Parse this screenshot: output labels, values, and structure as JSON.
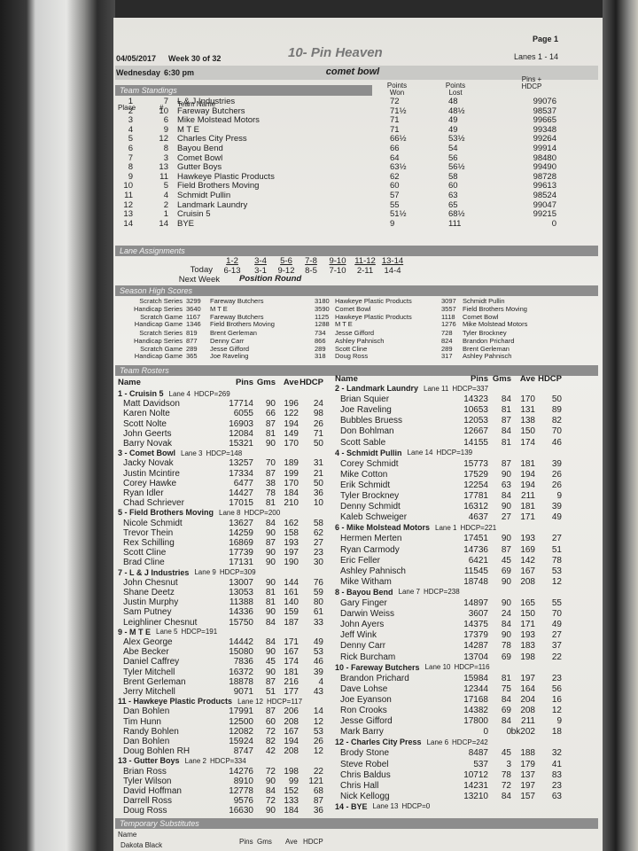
{
  "header": {
    "page": "Page 1",
    "date": "04/05/2017",
    "week": "Week 30 of 32",
    "title": "10- Pin Heaven",
    "lanes": "Lanes 1 - 14",
    "day": "Wednesday",
    "time": "6:30 pm",
    "center": "comet bowl"
  },
  "standings": {
    "title": "Team Standings",
    "columns": [
      "Place",
      "#",
      "Team Name",
      "Points Won",
      "Points Lost",
      "Pins + HDCP"
    ],
    "rows": [
      [
        1,
        7,
        "L & J Industries",
        "72",
        "48",
        99076
      ],
      [
        2,
        10,
        "Fareway Butchers",
        "71½",
        "48½",
        98537
      ],
      [
        3,
        6,
        "Mike Molstead Motors",
        "71",
        "49",
        99665
      ],
      [
        4,
        9,
        "M T E",
        "71",
        "49",
        99348
      ],
      [
        5,
        12,
        "Charles City Press",
        "66½",
        "53½",
        99264
      ],
      [
        6,
        8,
        "Bayou Bend",
        "66",
        "54",
        99914
      ],
      [
        7,
        3,
        "Comet Bowl",
        "64",
        "56",
        98480
      ],
      [
        8,
        13,
        "Gutter Boys",
        "63½",
        "56½",
        99490
      ],
      [
        9,
        11,
        "Hawkeye Plastic Products",
        "62",
        "58",
        98728
      ],
      [
        10,
        5,
        "Field Brothers Moving",
        "60",
        "60",
        99613
      ],
      [
        11,
        4,
        "Schmidt Pullin",
        "57",
        "63",
        98524
      ],
      [
        12,
        2,
        "Landmark Laundry",
        "55",
        "65",
        99047
      ],
      [
        13,
        1,
        "Cruisin 5",
        "51½",
        "68½",
        99215
      ],
      [
        14,
        14,
        "BYE",
        "9",
        "111",
        0
      ]
    ]
  },
  "lanes": {
    "title": "Lane Assignments",
    "pairs": [
      "1-2",
      "3-4",
      "5-6",
      "7-8",
      "9-10",
      "11-12",
      "13-14"
    ],
    "today_label": "Today",
    "today": [
      "6-13",
      "3-1",
      "9-12",
      "8-5",
      "7-10",
      "2-11",
      "14-4"
    ],
    "next_label": "Next Week",
    "next": "Position Round"
  },
  "high_scores": {
    "title": "Season High Scores",
    "team": [
      {
        "label": "Scratch Series",
        "entries": [
          [
            3299,
            "Fareway Butchers"
          ],
          [
            3180,
            "Hawkeye Plastic Products"
          ],
          [
            3097,
            "Schmidt Pullin"
          ]
        ]
      },
      {
        "label": "Handicap Series",
        "entries": [
          [
            3640,
            "M T E"
          ],
          [
            3590,
            "Comet Bowl"
          ],
          [
            3557,
            "Field Brothers Moving"
          ]
        ]
      },
      {
        "label": "Scratch Game",
        "entries": [
          [
            1167,
            "Fareway Butchers"
          ],
          [
            1125,
            "Hawkeye Plastic Products"
          ],
          [
            1118,
            "Comet Bowl"
          ]
        ]
      },
      {
        "label": "Handicap Game",
        "entries": [
          [
            1346,
            "Field Brothers Moving"
          ],
          [
            1288,
            "M T E"
          ],
          [
            1276,
            "Mike Molstead Motors"
          ]
        ]
      }
    ],
    "individual": [
      {
        "label": "Scratch Series",
        "entries": [
          [
            819,
            "Brent Gerleman"
          ],
          [
            734,
            "Jesse Gifford"
          ],
          [
            728,
            "Tyler Brockney"
          ]
        ]
      },
      {
        "label": "Handicap Series",
        "entries": [
          [
            877,
            "Denny Carr"
          ],
          [
            866,
            "Ashley Pahnisch"
          ],
          [
            824,
            "Brandon Prichard"
          ]
        ]
      },
      {
        "label": "Scratch Game",
        "entries": [
          [
            289,
            "Jesse Gifford"
          ],
          [
            289,
            "Scott Cline"
          ],
          [
            289,
            "Brent Gerleman"
          ]
        ]
      },
      {
        "label": "Handicap Game",
        "entries": [
          [
            365,
            "Joe Raveling"
          ],
          [
            318,
            "Doug Ross"
          ],
          [
            317,
            "Ashley Pahnisch"
          ]
        ]
      }
    ]
  },
  "rosters": {
    "title": "Team Rosters",
    "columns": [
      "Name",
      "Pins",
      "Gms",
      "Ave",
      "HDCP"
    ],
    "left": [
      {
        "team": "1 - Cruisin 5",
        "lane": "Lane 4",
        "hdcp": "HDCP=269",
        "players": [
          [
            "Matt Davidson",
            17714,
            90,
            196,
            24
          ],
          [
            "Karen Nolte",
            6055,
            66,
            122,
            98
          ],
          [
            "Scott Nolte",
            16903,
            87,
            194,
            26
          ],
          [
            "John Geerts",
            12084,
            81,
            149,
            71
          ],
          [
            "Barry Novak",
            15321,
            90,
            170,
            50
          ]
        ]
      },
      {
        "team": "3 - Comet Bowl",
        "lane": "Lane 3",
        "hdcp": "HDCP=148",
        "players": [
          [
            "Jacky Novak",
            13257,
            70,
            189,
            31
          ],
          [
            "Justin Mcintire",
            17334,
            87,
            199,
            21
          ],
          [
            "Corey Hawke",
            6477,
            38,
            170,
            50
          ],
          [
            "Ryan Idler",
            14427,
            78,
            184,
            36
          ],
          [
            "Chad Schriever",
            17015,
            81,
            210,
            10
          ]
        ]
      },
      {
        "team": "5 - Field Brothers Moving",
        "lane": "Lane 8",
        "hdcp": "HDCP=200",
        "players": [
          [
            "Nicole Schmidt",
            13627,
            84,
            162,
            58
          ],
          [
            "Trevor Thein",
            14259,
            90,
            158,
            62
          ],
          [
            "Rex Schilling",
            16869,
            87,
            193,
            27
          ],
          [
            "Scott Cline",
            17739,
            90,
            197,
            23
          ],
          [
            "Brad Cline",
            17131,
            90,
            190,
            30
          ]
        ]
      },
      {
        "team": "7 - L & J Industries",
        "lane": "Lane 9",
        "hdcp": "HDCP=309",
        "players": [
          [
            "John Chesnut",
            13007,
            90,
            144,
            76
          ],
          [
            "Shane Deetz",
            13053,
            81,
            161,
            59
          ],
          [
            "Justin Murphy",
            11388,
            81,
            140,
            80
          ],
          [
            "Sam Putney",
            14336,
            90,
            159,
            61
          ],
          [
            "Leighliner Chesnut",
            15750,
            84,
            187,
            33
          ]
        ]
      },
      {
        "team": "9 - M T E",
        "lane": "Lane 5",
        "hdcp": "HDCP=191",
        "players": [
          [
            "Alex George",
            14442,
            84,
            171,
            49
          ],
          [
            "Abe Becker",
            15080,
            90,
            167,
            53
          ],
          [
            "Daniel Caffrey",
            7836,
            45,
            174,
            46
          ],
          [
            "Tyler Mitchell",
            16372,
            90,
            181,
            39
          ],
          [
            "Brent Gerleman",
            18878,
            87,
            216,
            4
          ],
          [
            "Jerry Mitchell",
            9071,
            51,
            177,
            43
          ]
        ]
      },
      {
        "team": "11 - Hawkeye Plastic Products",
        "lane": "Lane 12",
        "hdcp": "HDCP=117",
        "players": [
          [
            "Dan Bohlen",
            17991,
            87,
            206,
            14
          ],
          [
            "Tim Hunn",
            12500,
            60,
            208,
            12
          ],
          [
            "Randy Bohlen",
            12082,
            72,
            167,
            53
          ],
          [
            "Dan Bohlen",
            15924,
            82,
            194,
            26
          ],
          [
            "Doug Bohlen RH",
            8747,
            42,
            208,
            12
          ]
        ]
      },
      {
        "team": "13 - Gutter Boys",
        "lane": "Lane 2",
        "hdcp": "HDCP=334",
        "players": [
          [
            "Brian Ross",
            14276,
            72,
            198,
            22
          ],
          [
            "Tyler Wilson",
            8910,
            90,
            99,
            121
          ],
          [
            "David Hoffman",
            12778,
            84,
            152,
            68
          ],
          [
            "Darrell Ross",
            9576,
            72,
            133,
            87
          ],
          [
            "Doug Ross",
            16630,
            90,
            184,
            36
          ]
        ]
      }
    ],
    "right": [
      {
        "team": "2 - Landmark Laundry",
        "lane": "Lane 11",
        "hdcp": "HDCP=337",
        "players": [
          [
            "Brian Squier",
            14323,
            84,
            170,
            50
          ],
          [
            "Joe Raveling",
            10653,
            81,
            131,
            89
          ],
          [
            "Bubbles Bruess",
            12053,
            87,
            138,
            82
          ],
          [
            "Don Bohlman",
            12667,
            84,
            150,
            70
          ],
          [
            "Scott Sable",
            14155,
            81,
            174,
            46
          ]
        ]
      },
      {
        "team": "4 - Schmidt Pullin",
        "lane": "Lane 14",
        "hdcp": "HDCP=139",
        "players": [
          [
            "Corey Schmidt",
            15773,
            87,
            181,
            39
          ],
          [
            "Mike Cotton",
            17529,
            90,
            194,
            26
          ],
          [
            "Erik Schmidt",
            12254,
            63,
            194,
            26
          ],
          [
            "Tyler Brockney",
            17781,
            84,
            211,
            9
          ],
          [
            "Denny Schmidt",
            16312,
            90,
            181,
            39
          ],
          [
            "Kaleb Schweiger",
            4637,
            27,
            171,
            49
          ]
        ]
      },
      {
        "team": "6 - Mike Molstead Motors",
        "lane": "Lane 1",
        "hdcp": "HDCP=221",
        "players": [
          [
            "Hermen Merten",
            17451,
            90,
            193,
            27
          ],
          [
            "Ryan Carmody",
            14736,
            87,
            169,
            51
          ],
          [
            "Eric Feller",
            6421,
            45,
            142,
            78
          ],
          [
            "Ashley Pahnisch",
            11545,
            69,
            167,
            53
          ],
          [
            "Mike Witham",
            18748,
            90,
            208,
            12
          ]
        ]
      },
      {
        "team": "8 - Bayou Bend",
        "lane": "Lane 7",
        "hdcp": "HDCP=238",
        "players": [
          [
            "Gary Finger",
            14897,
            90,
            165,
            55
          ],
          [
            "Darwin Weiss",
            3607,
            24,
            150,
            70
          ],
          [
            "John Ayers",
            14375,
            84,
            171,
            49
          ],
          [
            "Jeff Wink",
            17379,
            90,
            193,
            27
          ],
          [
            "Denny Carr",
            14287,
            78,
            183,
            37
          ],
          [
            "Rick Burcham",
            13704,
            69,
            198,
            22
          ]
        ]
      },
      {
        "team": "10 - Fareway Butchers",
        "lane": "Lane 10",
        "hdcp": "HDCP=116",
        "players": [
          [
            "Brandon Prichard",
            15984,
            81,
            197,
            23
          ],
          [
            "Dave Lohse",
            12344,
            75,
            164,
            56
          ],
          [
            "Joe Eyanson",
            17168,
            84,
            204,
            16
          ],
          [
            "Ron Crooks",
            14382,
            69,
            208,
            12
          ],
          [
            "Jesse Gifford",
            17800,
            84,
            211,
            9
          ],
          [
            "Mark Barry",
            0,
            0,
            "bk202",
            18
          ]
        ]
      },
      {
        "team": "12 - Charles City Press",
        "lane": "Lane 6",
        "hdcp": "HDCP=242",
        "players": [
          [
            "Brody Stone",
            8487,
            45,
            188,
            32
          ],
          [
            "Steve Robel",
            537,
            3,
            179,
            41
          ],
          [
            "Chris Baldus",
            10712,
            78,
            137,
            83
          ],
          [
            "Chris Hall",
            14231,
            72,
            197,
            23
          ],
          [
            "Nick Kellogg",
            13210,
            84,
            157,
            63
          ]
        ]
      },
      {
        "team": "14 - BYE",
        "lane": "Lane 13",
        "hdcp": "HDCP=0",
        "players": []
      }
    ]
  },
  "substitutes": {
    "title": "Temporary Substitutes",
    "columns": [
      "Name",
      "Pins",
      "Gms",
      "Ave",
      "HDCP"
    ],
    "rows": [
      [
        "Dakota Black"
      ]
    ]
  }
}
